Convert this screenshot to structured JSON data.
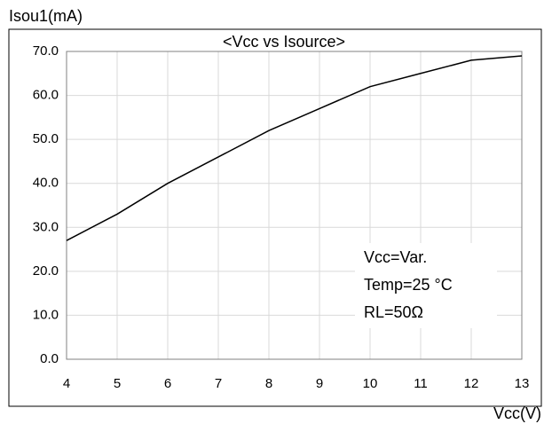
{
  "chart_data": {
    "type": "line",
    "title": "<Vcc vs Isource>",
    "y_label": "Isou1(mA)",
    "x_label": "Vcc(V)",
    "annotations": [
      "Vcc=Var.",
      "Temp=25 °C",
      "RL=50Ω"
    ],
    "x": [
      4,
      5,
      6,
      7,
      8,
      9,
      10,
      11,
      12,
      13
    ],
    "series": [
      {
        "name": "Isource",
        "color": "#000000",
        "values": [
          27,
          33,
          40,
          46,
          52,
          57,
          62,
          65,
          68,
          69
        ]
      }
    ],
    "xlim": [
      4,
      13
    ],
    "xticks": [
      4,
      5,
      6,
      7,
      8,
      9,
      10,
      11,
      12,
      13
    ],
    "ylim": [
      0,
      70
    ],
    "yticks": [
      {
        "value": 0,
        "label": "0.0"
      },
      {
        "value": 10,
        "label": "10.0"
      },
      {
        "value": 20,
        "label": "20.0"
      },
      {
        "value": 30,
        "label": "30.0"
      },
      {
        "value": 40,
        "label": "40.0"
      },
      {
        "value": 50,
        "label": "50.0"
      },
      {
        "value": 60,
        "label": "60.0"
      },
      {
        "value": 70,
        "label": "70.0"
      }
    ],
    "grid": true
  }
}
